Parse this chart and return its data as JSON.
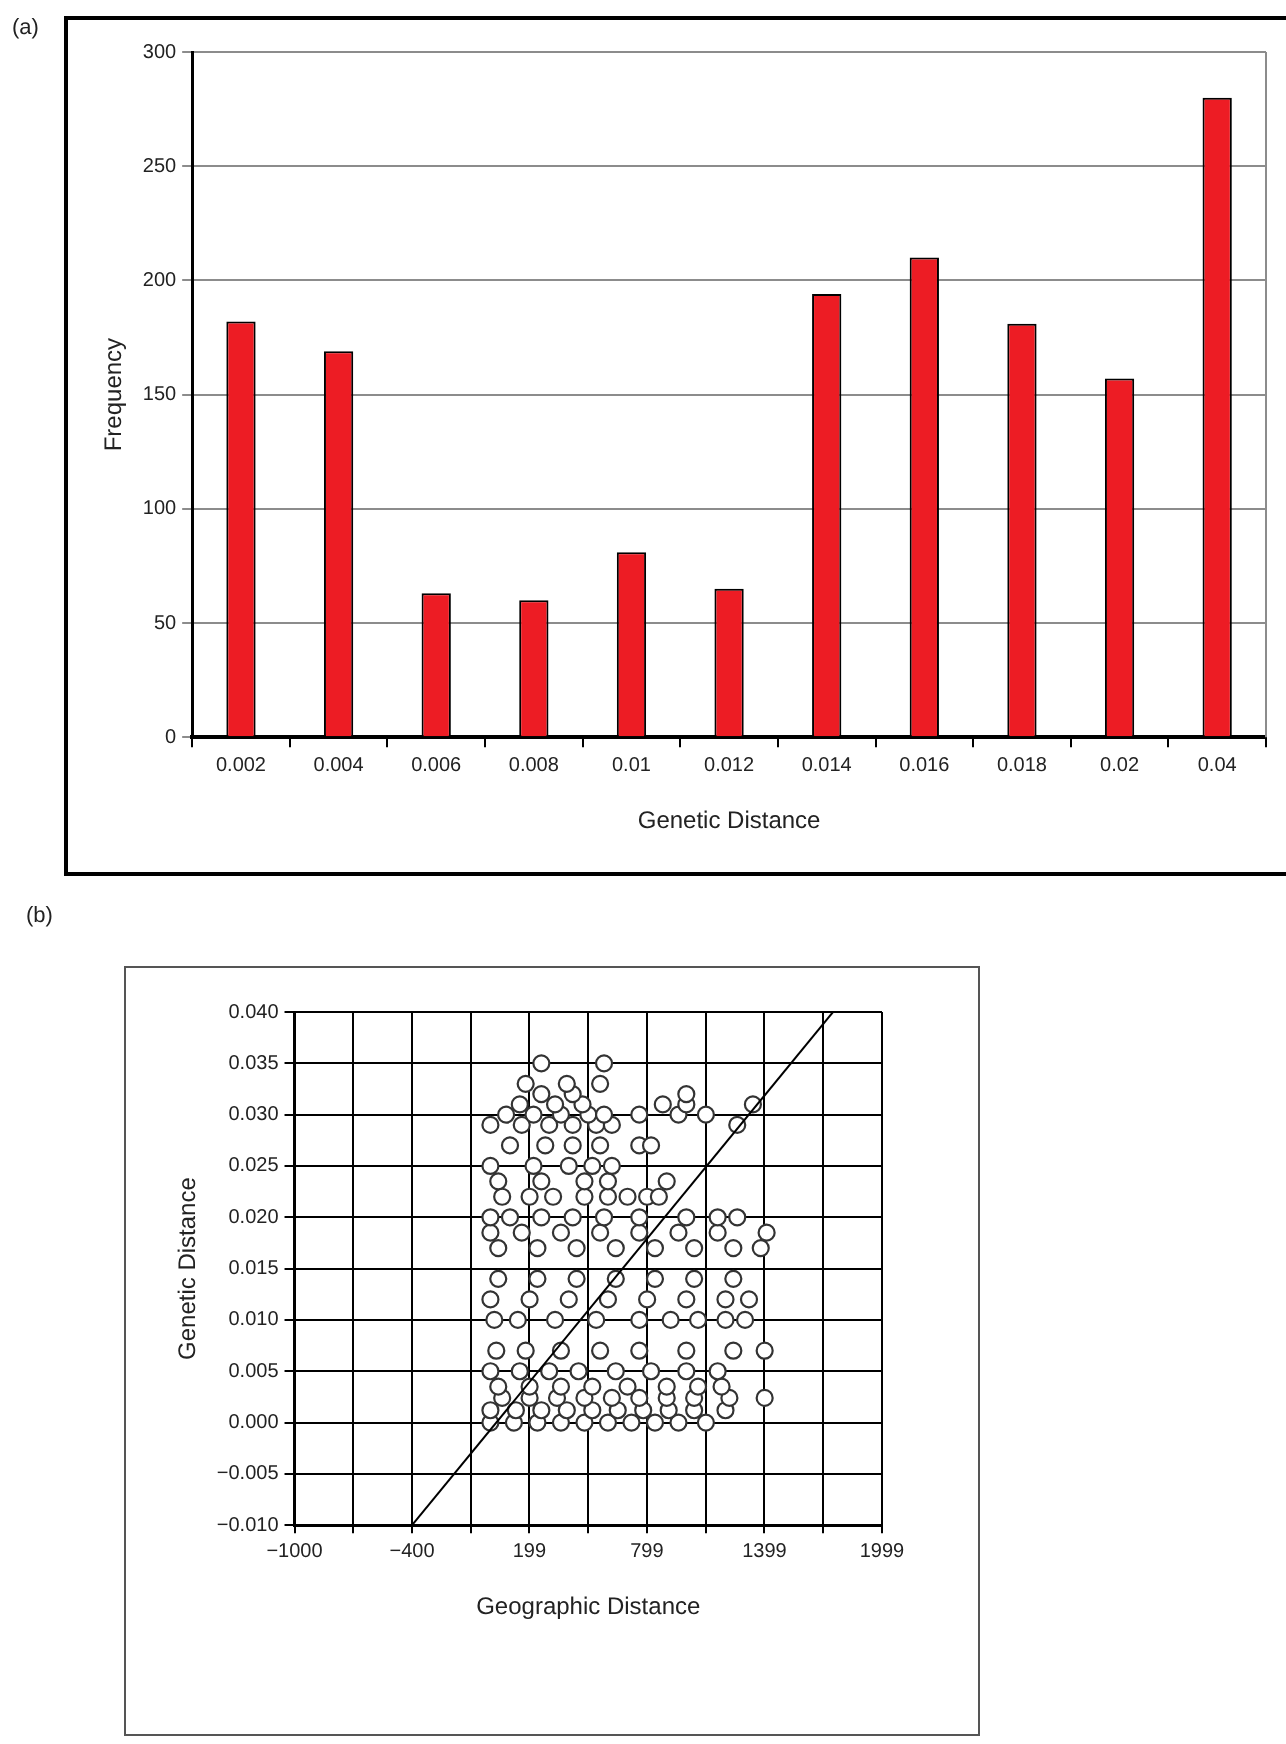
{
  "chart_data": [
    {
      "type": "bar",
      "xlabel": "Genetic Distance",
      "ylabel": "Frequency",
      "annotations": [
        "(a)"
      ],
      "categories": [
        "0.002",
        "0.004",
        "0.006",
        "0.008",
        "0.01",
        "0.012",
        "0.014",
        "0.016",
        "0.018",
        "0.02",
        "0.04"
      ],
      "values": [
        182,
        169,
        63,
        60,
        81,
        65,
        194,
        210,
        181,
        157,
        280
      ],
      "color": "#ed1c24",
      "ylim": [
        0,
        300
      ],
      "yticks": [
        0,
        50,
        100,
        150,
        200,
        250,
        300
      ],
      "grid": "y",
      "legend": false
    },
    {
      "type": "scatter",
      "xlabel": "Geographic Distance",
      "ylabel": "Genetic Distance",
      "annotations": [
        "(b)"
      ],
      "series": [
        {
          "type": "scatter",
          "color": "#333333",
          "marker": "circle",
          "x": [
            0,
            120,
            240,
            360,
            480,
            600,
            720,
            840,
            960,
            1100,
            0,
            130,
            260,
            390,
            520,
            650,
            780,
            910,
            1040,
            1200,
            60,
            200,
            340,
            480,
            620,
            760,
            900,
            1040,
            1220,
            1400,
            40,
            200,
            360,
            520,
            700,
            900,
            1060,
            1180,
            0,
            150,
            300,
            450,
            640,
            820,
            1000,
            1160,
            30,
            180,
            360,
            560,
            760,
            1000,
            1240,
            1400,
            20,
            140,
            330,
            540,
            760,
            920,
            1060,
            1200,
            1300,
            0,
            200,
            400,
            600,
            800,
            1000,
            1200,
            1320,
            40,
            240,
            440,
            640,
            840,
            1040,
            1240,
            40,
            240,
            440,
            640,
            840,
            1040,
            1240,
            1380,
            0,
            160,
            360,
            560,
            760,
            960,
            1160,
            1410,
            0,
            100,
            260,
            420,
            580,
            760,
            1000,
            1160,
            1260,
            60,
            200,
            320,
            480,
            600,
            700,
            800,
            860,
            40,
            260,
            480,
            600,
            900,
            0,
            220,
            400,
            520,
            620,
            100,
            280,
            420,
            560,
            760,
            820,
            0,
            160,
            300,
            420,
            540,
            620,
            1260,
            80,
            220,
            360,
            500,
            580,
            760,
            960,
            1100,
            150,
            330,
            470,
            880,
            1000,
            1340,
            260,
            420,
            1000,
            180,
            390,
            560,
            260,
            580
          ],
          "values": [
            0,
            0,
            0,
            0,
            0,
            0,
            0,
            0,
            0,
            0,
            0.0012,
            0.0012,
            0.0012,
            0.0012,
            0.0012,
            0.0012,
            0.0012,
            0.0012,
            0.0012,
            0.0012,
            0.0024,
            0.0024,
            0.0024,
            0.0024,
            0.0024,
            0.0024,
            0.0024,
            0.0024,
            0.0024,
            0.0024,
            0.0035,
            0.0035,
            0.0035,
            0.0035,
            0.0035,
            0.0035,
            0.0035,
            0.0035,
            0.005,
            0.005,
            0.005,
            0.005,
            0.005,
            0.005,
            0.005,
            0.005,
            0.007,
            0.007,
            0.007,
            0.007,
            0.007,
            0.007,
            0.007,
            0.007,
            0.01,
            0.01,
            0.01,
            0.01,
            0.01,
            0.01,
            0.01,
            0.01,
            0.01,
            0.012,
            0.012,
            0.012,
            0.012,
            0.012,
            0.012,
            0.012,
            0.012,
            0.014,
            0.014,
            0.014,
            0.014,
            0.014,
            0.014,
            0.014,
            0.017,
            0.017,
            0.017,
            0.017,
            0.017,
            0.017,
            0.017,
            0.017,
            0.0185,
            0.0185,
            0.0185,
            0.0185,
            0.0185,
            0.0185,
            0.0185,
            0.0185,
            0.02,
            0.02,
            0.02,
            0.02,
            0.02,
            0.02,
            0.02,
            0.02,
            0.02,
            0.022,
            0.022,
            0.022,
            0.022,
            0.022,
            0.022,
            0.022,
            0.022,
            0.0235,
            0.0235,
            0.0235,
            0.0235,
            0.0235,
            0.025,
            0.025,
            0.025,
            0.025,
            0.025,
            0.027,
            0.027,
            0.027,
            0.027,
            0.027,
            0.027,
            0.029,
            0.029,
            0.029,
            0.029,
            0.029,
            0.029,
            0.029,
            0.03,
            0.03,
            0.03,
            0.03,
            0.03,
            0.03,
            0.03,
            0.03,
            0.031,
            0.031,
            0.031,
            0.031,
            0.031,
            0.031,
            0.032,
            0.032,
            0.032,
            0.033,
            0.033,
            0.033,
            0.035,
            0.035
          ]
        },
        {
          "type": "line",
          "color": "#000000",
          "marker": "none",
          "x": [
            -400,
            1749
          ],
          "values": [
            -0.01,
            0.04
          ]
        }
      ],
      "xlim": [
        -1000,
        1999
      ],
      "xticks": [
        {
          "value": -1000,
          "label": "−1000"
        },
        {
          "value": -700,
          "label": null
        },
        {
          "value": -400,
          "label": "−400"
        },
        {
          "value": -100,
          "label": null
        },
        199,
        {
          "value": 499,
          "label": null
        },
        799,
        {
          "value": 1099,
          "label": null
        },
        1399,
        {
          "value": 1699,
          "label": null
        },
        1999
      ],
      "ylim": [
        -0.01,
        0.04
      ],
      "yticks": [
        {
          "value": -0.01,
          "label": "−0.010"
        },
        {
          "value": -0.005,
          "label": "−0.005"
        },
        {
          "value": 0,
          "label": "0.000"
        },
        {
          "value": 0.005,
          "label": "0.005"
        },
        {
          "value": 0.01,
          "label": "0.010"
        },
        {
          "value": 0.015,
          "label": "0.015"
        },
        {
          "value": 0.02,
          "label": "0.020"
        },
        {
          "value": 0.025,
          "label": "0.025"
        },
        {
          "value": 0.03,
          "label": "0.030"
        },
        {
          "value": 0.035,
          "label": "0.035"
        },
        {
          "value": 0.04,
          "label": "0.040"
        }
      ],
      "grid": true,
      "legend": false
    }
  ]
}
